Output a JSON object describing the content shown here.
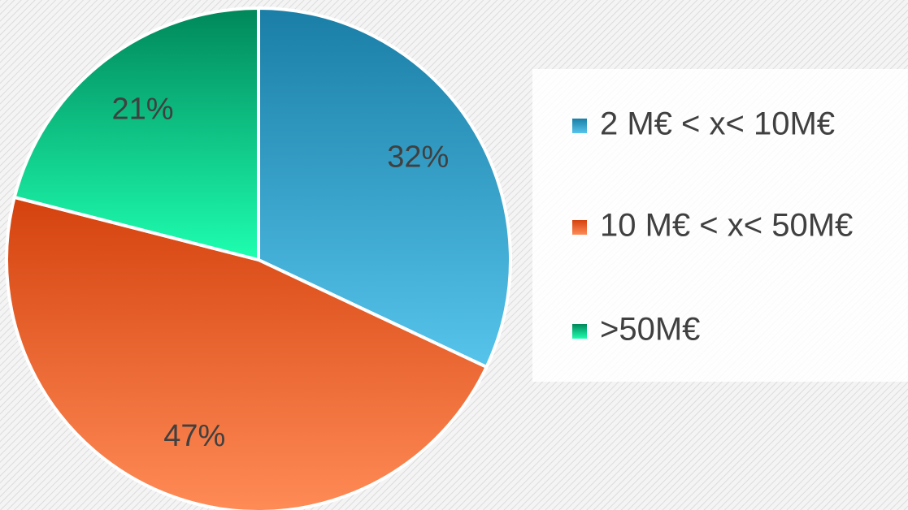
{
  "chart_data": {
    "type": "pie",
    "categories": [
      "2 M€ < x< 10M€",
      "10 M€ < x< 50M€",
      ">50M€"
    ],
    "values": [
      32,
      47,
      21
    ],
    "value_labels": [
      "32%",
      "47%",
      "21%"
    ],
    "colors": [
      [
        "#1a7ea6",
        "#56c4eb"
      ],
      [
        "#d4420e",
        "#ff8b56"
      ],
      [
        "#00875a",
        "#1effb0"
      ]
    ],
    "legend": "right"
  }
}
